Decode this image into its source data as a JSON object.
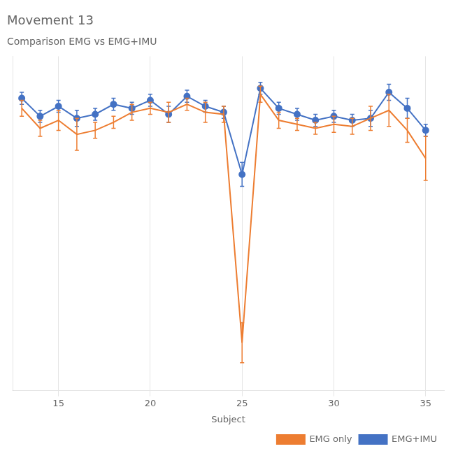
{
  "chart_data": {
    "type": "line",
    "title": "Movement 13",
    "subtitle": "Comparison EMG vs EMG+IMU",
    "xlabel": "Subject",
    "x": [
      13,
      14,
      15,
      16,
      17,
      18,
      19,
      20,
      21,
      22,
      23,
      24,
      25,
      26,
      27,
      28,
      29,
      30,
      31,
      32,
      33,
      34,
      35
    ],
    "series": [
      {
        "name": "EMG only",
        "color": "#ED7D31",
        "marker": "none",
        "values": [
          0.69,
          0.59,
          0.63,
          0.56,
          0.58,
          0.62,
          0.67,
          0.69,
          0.67,
          0.71,
          0.67,
          0.66,
          -0.48,
          0.76,
          0.63,
          0.61,
          0.59,
          0.61,
          0.6,
          0.64,
          0.68,
          0.58,
          0.44
        ],
        "errors": [
          0.04,
          0.04,
          0.05,
          0.08,
          0.04,
          0.03,
          0.04,
          0.03,
          0.05,
          0.03,
          0.05,
          0.04,
          0.1,
          0.04,
          0.04,
          0.03,
          0.03,
          0.04,
          0.04,
          0.06,
          0.08,
          0.06,
          0.11
        ]
      },
      {
        "name": "EMG+IMU",
        "color": "#4472C4",
        "marker": "circle",
        "values": [
          0.74,
          0.65,
          0.7,
          0.64,
          0.66,
          0.71,
          0.69,
          0.73,
          0.66,
          0.75,
          0.7,
          0.67,
          0.36,
          0.79,
          0.69,
          0.66,
          0.63,
          0.65,
          0.63,
          0.64,
          0.77,
          0.69,
          0.58
        ],
        "errors": [
          0.03,
          0.03,
          0.03,
          0.04,
          0.03,
          0.03,
          0.03,
          0.03,
          0.04,
          0.03,
          0.03,
          0.03,
          0.06,
          0.03,
          0.03,
          0.03,
          0.03,
          0.03,
          0.03,
          0.04,
          0.04,
          0.05,
          0.03
        ]
      }
    ],
    "xlim": [
      12.5,
      36
    ],
    "xticks": [
      15,
      20,
      25,
      30,
      35
    ],
    "ylim": [
      -0.72,
      0.95
    ],
    "yticks": [],
    "grid": true,
    "legend": "lower right",
    "tick_labels": "x"
  }
}
